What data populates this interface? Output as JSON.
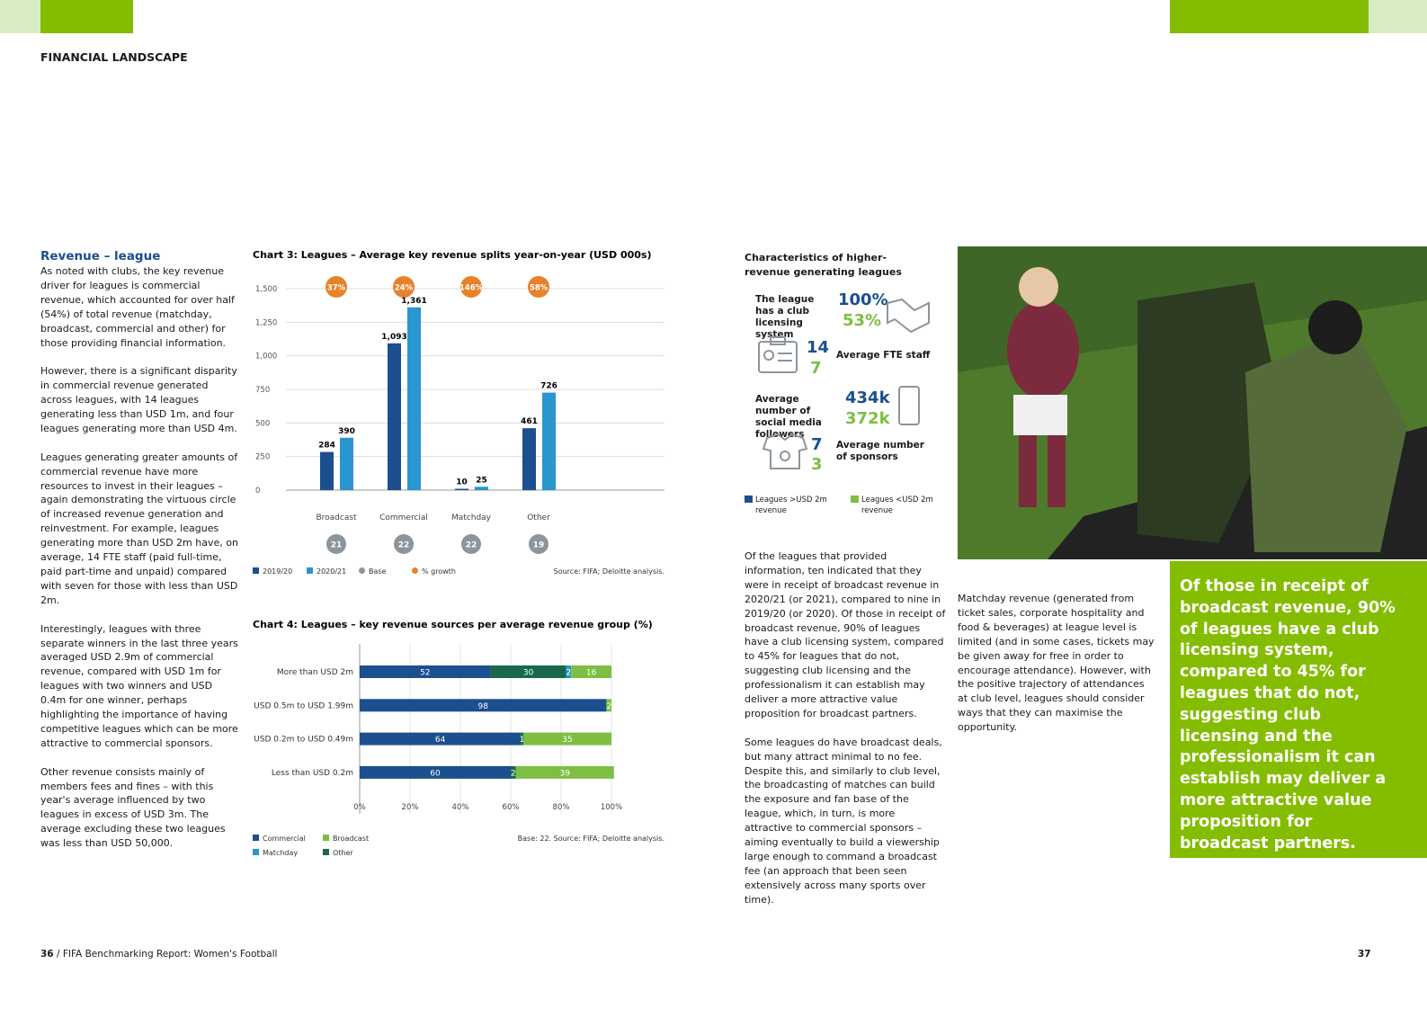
{
  "header": {
    "section": "FINANCIAL LANDSCAPE"
  },
  "left": {
    "heading": "Revenue – league",
    "paragraphs": [
      "As noted with clubs, the key revenue driver for leagues is commercial revenue, which accounted for over half (54%) of total revenue (matchday, broadcast, commercial and other) for those providing financial information.",
      "However, there is a significant disparity in commercial revenue generated across leagues, with 14 leagues generating less than USD 1m, and four leagues generating more than USD 4m.",
      "Leagues generating greater amounts of commercial revenue have more resources to invest in their leagues – again demonstrating the virtuous circle of increased revenue generation and reinvestment. For example, leagues generating more than USD 2m have, on average, 14 FTE staff (paid full-time, paid part-time and unpaid) compared with seven for those with less than USD 2m.",
      "Interestingly, leagues with three separate winners in the last three years averaged USD 2.9m of commercial revenue, compared with USD 1m for leagues with two winners and USD 0.4m for one winner, perhaps highlighting the importance of having competitive leagues which can be more attractive to commercial sponsors.",
      "Other revenue consists mainly of members fees and fines – with this year's average influenced by two leagues in excess of USD 3m. The average excluding these two leagues was less than USD 50,000."
    ]
  },
  "chart_data": [
    {
      "type": "bar",
      "title": "Chart 3: Leagues – Average key revenue splits year-on-year (USD 000s)",
      "categories": [
        "Broadcast",
        "Commercial",
        "Matchday",
        "Other"
      ],
      "series": [
        {
          "name": "2019/20",
          "color": "#1b4f8d",
          "values": [
            284,
            1093,
            10,
            461
          ],
          "value_labels": [
            "284",
            "1,093",
            "10",
            "461"
          ]
        },
        {
          "name": "2020/21",
          "color": "#2a96cf",
          "values": [
            390,
            1361,
            25,
            726
          ],
          "value_labels": [
            "390",
            "1,361",
            "25",
            "726"
          ]
        }
      ],
      "growth": {
        "name": "% growth",
        "color": "#e8822a",
        "values": [
          37,
          24,
          146,
          58
        ],
        "value_labels": [
          "37%",
          "24%",
          "146%",
          "58%"
        ]
      },
      "base": {
        "name": "Base",
        "color": "#8c959c",
        "values": [
          21,
          22,
          22,
          19
        ]
      },
      "ylim": [
        0,
        1500
      ],
      "yticks": [
        0,
        250,
        500,
        750,
        {
          "value": 1000,
          "label": "1,000"
        },
        {
          "value": 1250,
          "label": "1,250"
        },
        {
          "value": 1500,
          "label": "1,500"
        }
      ],
      "grid": true,
      "source": "Source: FIFA; Deloitte analysis."
    },
    {
      "type": "stacked-barh",
      "title": "Chart 4: Leagues – key revenue sources per average revenue group (%)",
      "categories": [
        "More than USD 2m",
        "USD 0.5m to USD 1.99m",
        "USD 0.2m to USD 0.49m",
        "Less than USD 0.2m"
      ],
      "series": [
        {
          "name": "Commercial",
          "color": "#1b4f8d",
          "values": [
            52,
            98,
            64,
            60
          ]
        },
        {
          "name": "Other",
          "color": "#17694a",
          "values": [
            30,
            null,
            1,
            2
          ]
        },
        {
          "name": "Matchday",
          "color": "#2a96cf",
          "values": [
            2,
            null,
            null,
            null
          ]
        },
        {
          "name": "Broadcast",
          "color": "#7dbf42",
          "values": [
            16,
            2,
            35,
            39
          ]
        }
      ],
      "xlim": [
        0,
        100
      ],
      "xticks": [
        {
          "value": 0,
          "label": "0%"
        },
        {
          "value": 20,
          "label": "20%"
        },
        {
          "value": 40,
          "label": "40%"
        },
        {
          "value": 60,
          "label": "60%"
        },
        {
          "value": 80,
          "label": "80%"
        },
        {
          "value": 100,
          "label": "100%"
        }
      ],
      "source": "Base: 22. Source: FIFA; Deloitte analysis."
    }
  ],
  "characteristics": {
    "title": "Characteristics of higher-revenue generating leagues",
    "items": [
      {
        "label": "The league has a club licensing system",
        "high": "100%",
        "low": "53%"
      },
      {
        "label": "Average FTE staff",
        "high": "14",
        "low": "7"
      },
      {
        "label": "Average number of social media followers",
        "high": "434k",
        "low": "372k"
      },
      {
        "label": "Average number of sponsors",
        "high": "7",
        "low": "3"
      }
    ],
    "legend": [
      "Leagues >USD 2m revenue",
      "Leagues <USD 2m revenue"
    ]
  },
  "middle": {
    "paragraphs": [
      "Of the leagues that provided information, ten indicated that they were in receipt of broadcast revenue in 2020/21 (or 2021), compared to nine in 2019/20 (or 2020). Of those in receipt of broadcast revenue, 90% of leagues have a club licensing system, compared to 45% for leagues that do not, suggesting club licensing and the professionalism it can establish may deliver a more attractive value proposition for broadcast partners.",
      "Some leagues do have broadcast deals, but many attract minimal to no fee. Despite this, and similarly to club level, the broadcasting of matches can build the exposure and fan base of the league, which, in turn, is more attractive to commercial sponsors – aiming eventually to build a viewership large enough to command a broadcast fee (an approach that been seen extensively across many sports over time)."
    ]
  },
  "right": {
    "paragraph": "Matchday revenue (generated from ticket sales, corporate hospitality and food & beverages) at league level is limited (and in some cases, tickets may be given away for free in order to encourage attendance). However, with the positive trajectory of attendances at club level, leagues should consider ways that they can maximise the opportunity."
  },
  "callout": "Of those in receipt of broadcast revenue, 90% of leagues have a club licensing system, compared to 45% for leagues that do not, suggesting club licensing and the professionalism it can establish may deliver a more attractive value proposition for broadcast partners.",
  "footer": {
    "page_left": "36",
    "title": "/ FIFA Benchmarking Report: Women's Football",
    "page_right": "37"
  }
}
